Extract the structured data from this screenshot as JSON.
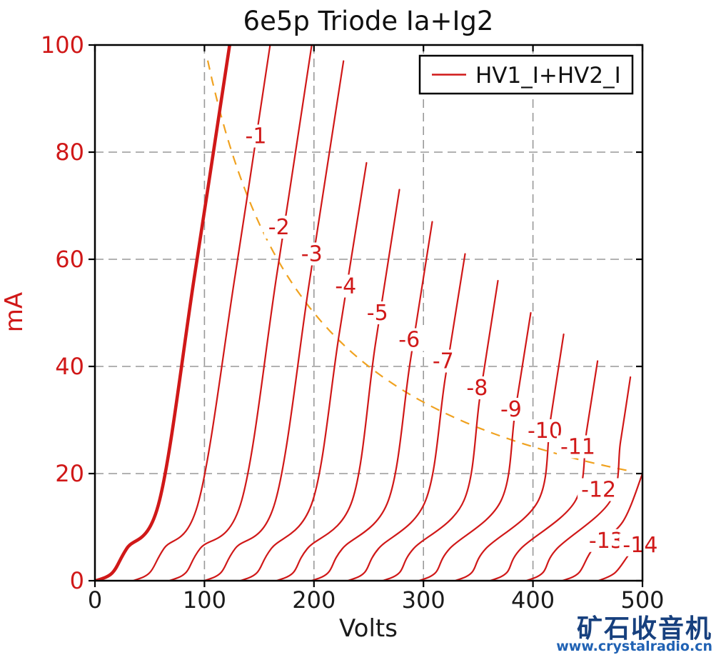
{
  "title": "6e5p Triode Ia+Ig2",
  "xlabel": "Volts",
  "ylabel": "mA",
  "legend": {
    "label": "HV1_I+HV2_I"
  },
  "watermark": {
    "line1": "矿石收音机",
    "line2": "www.crystalradio.cn",
    "color1": "#17407e",
    "color2": "#2062b4"
  },
  "colors": {
    "curve": "#d01818",
    "dissipation": "#f0a220",
    "grid": "#999999",
    "axis": "#000000",
    "x_tick_label": "#1a1a1a",
    "y_tick_label": "#d01818",
    "title": "#111111",
    "curve_label": "#d01818"
  },
  "chart_data": {
    "type": "line",
    "title": "6e5p Triode Ia+Ig2",
    "xlabel": "Volts",
    "ylabel": "mA",
    "xlim": [
      0,
      500
    ],
    "ylim": [
      0,
      100
    ],
    "x_ticks": [
      0,
      100,
      200,
      300,
      400,
      500
    ],
    "y_ticks": [
      0,
      20,
      40,
      60,
      80,
      100
    ],
    "x_gridlines": [
      100,
      200,
      300,
      400
    ],
    "y_gridlines": [
      20,
      40,
      60,
      80
    ],
    "grid": true,
    "legend": {
      "entries": [
        "HV1_I+HV2_I"
      ],
      "position": "upper right"
    },
    "series": [
      {
        "name": "Vg=0",
        "grid_voltage": 0,
        "label": null,
        "thick": true,
        "points": [
          [
            1,
            0
          ],
          [
            16,
            1.5
          ],
          [
            29,
            6
          ],
          [
            59,
            15
          ],
          [
            91,
            57
          ],
          [
            123,
            100
          ]
        ]
      },
      {
        "name": "Vg=-1",
        "grid_voltage": -1,
        "label": "-1",
        "label_position": [
          147,
          83
        ],
        "points": [
          [
            35,
            0
          ],
          [
            50,
            1.5
          ],
          [
            63,
            6
          ],
          [
            95,
            15
          ],
          [
            128,
            57
          ],
          [
            160,
            100
          ]
        ]
      },
      {
        "name": "Vg=-2",
        "grid_voltage": -2,
        "label": "-2",
        "label_position": [
          168,
          66
        ],
        "points": [
          [
            68,
            0
          ],
          [
            83,
            1.5
          ],
          [
            96,
            6
          ],
          [
            134,
            15
          ],
          [
            166,
            57
          ],
          [
            198,
            100
          ]
        ]
      },
      {
        "name": "Vg=-3",
        "grid_voltage": -3,
        "label": "-3",
        "label_position": [
          198,
          61
        ],
        "points": [
          [
            100,
            0
          ],
          [
            115,
            1.5
          ],
          [
            128,
            6
          ],
          [
            165,
            15
          ],
          [
            196,
            56
          ],
          [
            227,
            97
          ]
        ]
      },
      {
        "name": "Vg=-4",
        "grid_voltage": -4,
        "label": "-4",
        "label_position": [
          229,
          55
        ],
        "points": [
          [
            133,
            0
          ],
          [
            148,
            1.5
          ],
          [
            161,
            6
          ],
          [
            199,
            15
          ],
          [
            223,
            46
          ],
          [
            248,
            78
          ]
        ]
      },
      {
        "name": "Vg=-5",
        "grid_voltage": -5,
        "label": "-5",
        "label_position": [
          258,
          50
        ],
        "points": [
          [
            166,
            0
          ],
          [
            181,
            1.5
          ],
          [
            194,
            6
          ],
          [
            235,
            15
          ],
          [
            256,
            44
          ],
          [
            278,
            73
          ]
        ]
      },
      {
        "name": "Vg=-6",
        "grid_voltage": -6,
        "label": "-6",
        "label_position": [
          287,
          45
        ],
        "points": [
          [
            198,
            0
          ],
          [
            213,
            1.5
          ],
          [
            226,
            6
          ],
          [
            268,
            15
          ],
          [
            288,
            41
          ],
          [
            308,
            67
          ]
        ]
      },
      {
        "name": "Vg=-7",
        "grid_voltage": -7,
        "label": "-7",
        "label_position": [
          318,
          41
        ],
        "points": [
          [
            231,
            0
          ],
          [
            246,
            1.5
          ],
          [
            259,
            6
          ],
          [
            302,
            15
          ],
          [
            320,
            38
          ],
          [
            338,
            61
          ]
        ]
      },
      {
        "name": "Vg=-8",
        "grid_voltage": -8,
        "label": "-8",
        "label_position": [
          349,
          36
        ],
        "points": [
          [
            263,
            0
          ],
          [
            278,
            1.5
          ],
          [
            291,
            6
          ],
          [
            337,
            15
          ],
          [
            352,
            35
          ],
          [
            368,
            56
          ]
        ]
      },
      {
        "name": "Vg=-9",
        "grid_voltage": -9,
        "label": "-9",
        "label_position": [
          380,
          32
        ],
        "points": [
          [
            296,
            0
          ],
          [
            311,
            1.5
          ],
          [
            324,
            6
          ],
          [
            371,
            15
          ],
          [
            384,
            32
          ],
          [
            398,
            50
          ]
        ]
      },
      {
        "name": "Vg=-10",
        "grid_voltage": -10,
        "label": "-10",
        "label_position": [
          411,
          28
        ],
        "points": [
          [
            329,
            0
          ],
          [
            344,
            1.5
          ],
          [
            357,
            6
          ],
          [
            405,
            15
          ],
          [
            416,
            30
          ],
          [
            428,
            46
          ]
        ]
      },
      {
        "name": "Vg=-11",
        "grid_voltage": -11,
        "label": "-11",
        "label_position": [
          441,
          25
        ],
        "points": [
          [
            361,
            0
          ],
          [
            376,
            1.5
          ],
          [
            389,
            6
          ],
          [
            439,
            15
          ],
          [
            449,
            28
          ],
          [
            459,
            41
          ]
        ]
      },
      {
        "name": "Vg=-12",
        "grid_voltage": -12,
        "label": "-12",
        "label_position": [
          460,
          17
        ],
        "points": [
          [
            394,
            0
          ],
          [
            409,
            1.5
          ],
          [
            422,
            6
          ],
          [
            471,
            15
          ],
          [
            480,
            26
          ],
          [
            489,
            38
          ]
        ]
      },
      {
        "name": "Vg=-13",
        "grid_voltage": -13,
        "label": "-13",
        "label_position": [
          467,
          7.5
        ],
        "points": [
          [
            427,
            0
          ],
          [
            442,
            1.5
          ],
          [
            455,
            6
          ],
          [
            482,
            11
          ],
          [
            500,
            20
          ]
        ]
      },
      {
        "name": "Vg=-14",
        "grid_voltage": -14,
        "label": "-14",
        "label_position": [
          498,
          6.7
        ],
        "points": [
          [
            460,
            0
          ],
          [
            475,
            1.5
          ],
          [
            488,
            5
          ],
          [
            500,
            8
          ]
        ]
      }
    ],
    "dissipation_curve": {
      "style": "dashed",
      "power_watts": 10,
      "v_start": 103,
      "v_end": 489,
      "note": "I(mA) = 10000 / V"
    }
  }
}
